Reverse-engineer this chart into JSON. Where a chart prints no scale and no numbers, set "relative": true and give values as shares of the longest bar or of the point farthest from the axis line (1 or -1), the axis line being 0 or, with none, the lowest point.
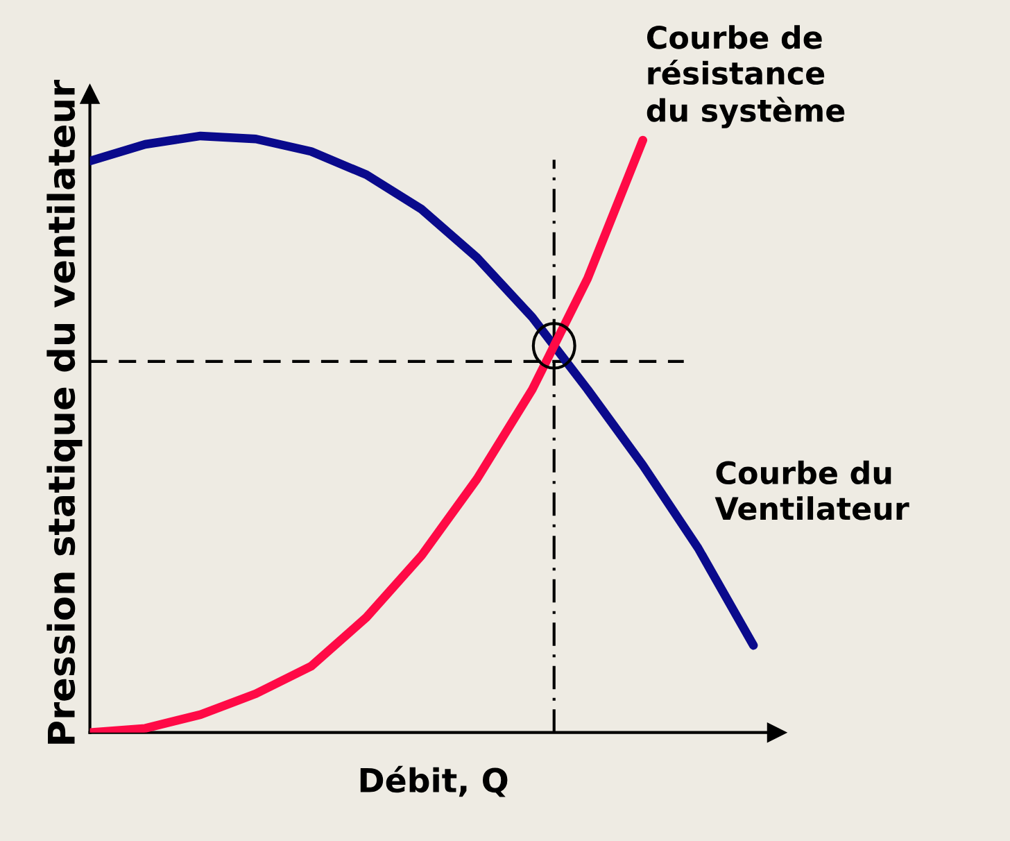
{
  "chart_data": {
    "type": "line",
    "relative": true,
    "xlabel": "Débit, Q",
    "ylabel": "Pression statique du ventilateur",
    "categories": [
      null,
      null,
      null,
      null,
      null,
      null,
      null,
      null,
      null,
      null,
      null,
      null,
      null
    ],
    "series": [
      {
        "name": "Courbe du\nVentilateur",
        "color": "#0a0a8c",
        "values": [
          0.958,
          0.986,
          1.0,
          0.995,
          0.974,
          0.935,
          0.877,
          0.796,
          0.696,
          0.575,
          0.448,
          0.309,
          0.146
        ]
      },
      {
        "name": "Courbe de\nrésistance\ndu système",
        "color": "#ff0a46",
        "values": [
          0.0,
          0.007,
          0.03,
          0.065,
          0.111,
          0.193,
          0.297,
          0.425,
          0.575,
          0.761,
          0.993,
          null,
          null
        ]
      }
    ],
    "ref_lines": [
      {
        "axis": "y",
        "value": 0.622,
        "color": "#000000",
        "line_style": "dashed"
      }
    ],
    "marker": "none",
    "line_style": "solid",
    "legend": false
  }
}
